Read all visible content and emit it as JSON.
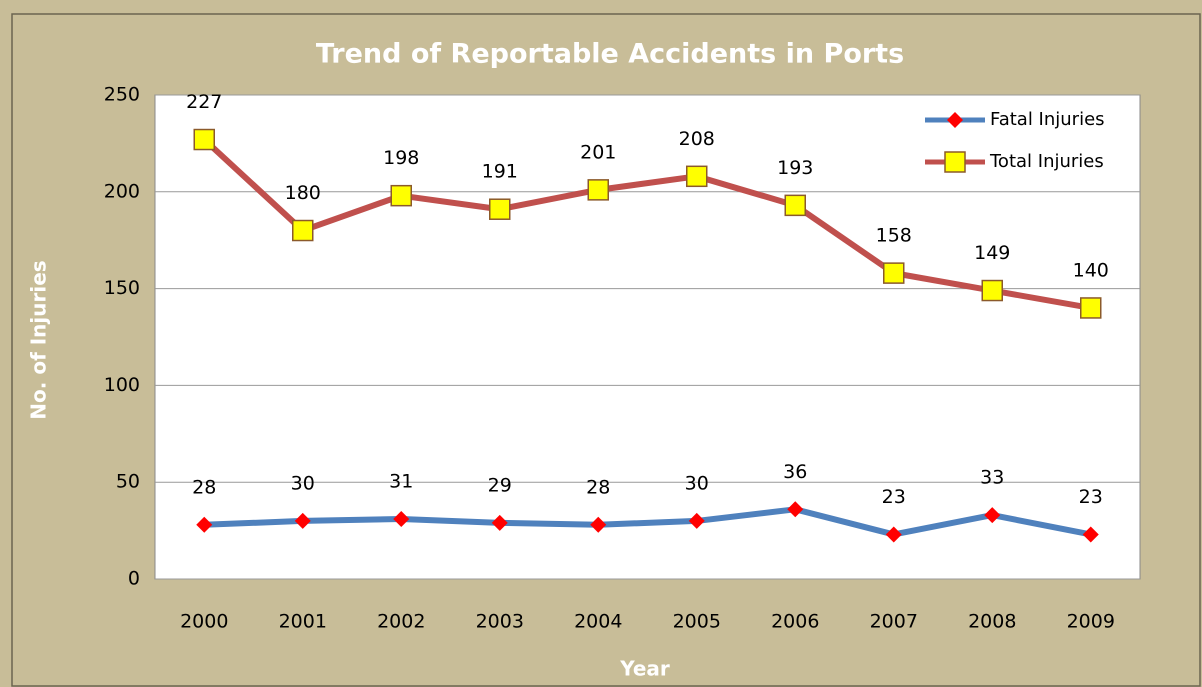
{
  "chart_data": {
    "type": "line",
    "title": "Trend of Reportable Accidents in Ports",
    "xlabel": "Year",
    "ylabel": "No. of Injuries",
    "categories": [
      "2000",
      "2001",
      "2002",
      "2003",
      "2004",
      "2005",
      "2006",
      "2007",
      "2008",
      "2009"
    ],
    "series": [
      {
        "name": "Fatal Injuries",
        "color": "#4f81bd",
        "marker_color": "#ff0000",
        "marker": "diamond",
        "values": [
          28,
          30,
          31,
          29,
          28,
          30,
          36,
          23,
          33,
          23
        ]
      },
      {
        "name": "Total Injuries",
        "color": "#c0504d",
        "marker_color": "#ffff00",
        "marker": "square",
        "values": [
          227,
          180,
          198,
          191,
          201,
          208,
          193,
          158,
          149,
          140
        ]
      }
    ],
    "ylim": [
      0,
      250
    ],
    "yticks": [
      0,
      50,
      100,
      150,
      200,
      250
    ],
    "grid": true,
    "legend": "upper right"
  }
}
